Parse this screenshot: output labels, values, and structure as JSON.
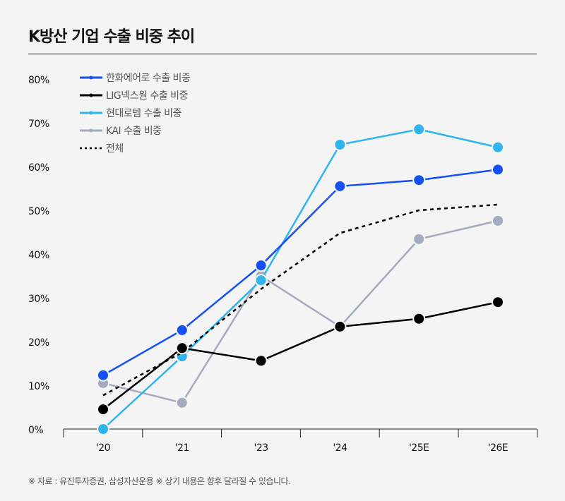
{
  "title": "K방산 기업 수출 비중 추이",
  "note": "※ 자료 : 유진투자증권, 삼성자산운용 ※ 상기 내용은 향후 달라질 수 있습니다.",
  "chart_data": {
    "type": "line",
    "title": "K방산 기업 수출 비중 추이",
    "categories": [
      "'20",
      "'21",
      "'23",
      "'24",
      "'25E",
      "'26E"
    ],
    "ylim": [
      0,
      80
    ],
    "yticks": [
      "0%",
      "10%",
      "20%",
      "30%",
      "40%",
      "50%",
      "60%",
      "70%",
      "80%"
    ],
    "grid": false,
    "legend": "top-left",
    "series": [
      {
        "name": "한화에어로 수출 비중",
        "color": "#1450f5",
        "style": "solid-marker",
        "values": [
          12.3,
          22.6,
          37.4,
          55.5,
          56.9,
          59.3
        ]
      },
      {
        "name": "LIG넥스원 수출 비중",
        "color": "#000000",
        "style": "solid-marker",
        "values": [
          4.5,
          18.5,
          15.6,
          23.4,
          25.2,
          29.0
        ]
      },
      {
        "name": "현대로템 수출 비중",
        "color": "#2fb4ee",
        "style": "solid-marker",
        "values": [
          0.0,
          16.6,
          34.0,
          65.0,
          68.5,
          64.4
        ]
      },
      {
        "name": "KAI 수출 비중",
        "color": "#a4abbd",
        "style": "solid-marker",
        "values": [
          10.5,
          6.0,
          35.0,
          23.4,
          43.4,
          47.6
        ]
      },
      {
        "name": "전체",
        "color": "#000000",
        "style": "dotted",
        "values": [
          7.7,
          17.5,
          32.0,
          44.8,
          50.0,
          51.3
        ]
      }
    ]
  }
}
